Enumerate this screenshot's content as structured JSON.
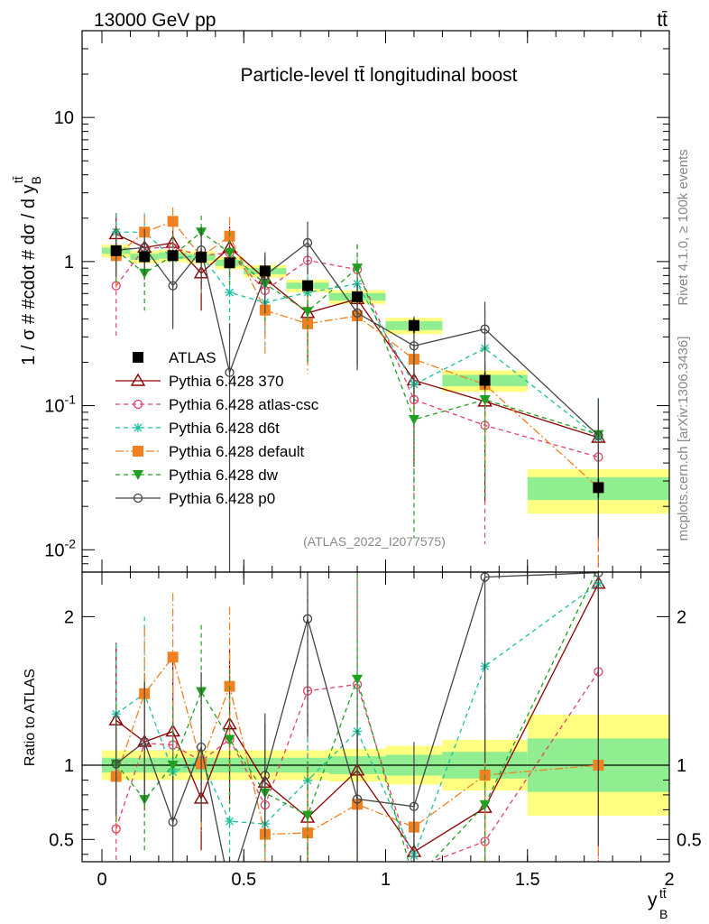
{
  "header": {
    "left": "13000 GeV pp",
    "right": "tt̄"
  },
  "side_labels": {
    "rivet": "Rivet 4.1.0, ≥ 100k events",
    "mcplots": "mcplots.cern.ch [arXiv:1306.3436]"
  },
  "chart_data": {
    "type": "line",
    "title": "Particle-level tt̄ longitudinal boost",
    "watermark": "(ATLAS_2022_I2077575)",
    "xlabel": "y_B^{tt̄}",
    "ylabel": "1 / σ # #cdot # dσ / d y_B^{tt̄}",
    "ratio_ylabel": "Ratio to ATLAS",
    "xlim": [
      -0.07,
      2.0
    ],
    "ylim": [
      0.007,
      40
    ],
    "yscale": "log",
    "ratio_ylim": [
      0.35,
      2.3
    ],
    "x_ticks": [
      "0",
      "0.5",
      "1",
      "1.5",
      "2"
    ],
    "y_ticks": [
      "10^{-2}",
      "10^{-1}",
      "1",
      "10"
    ],
    "ratio_ticks": [
      "0.5",
      "1",
      "2"
    ],
    "bins": [
      [
        0,
        0.1
      ],
      [
        0.1,
        0.2
      ],
      [
        0.2,
        0.3
      ],
      [
        0.3,
        0.4
      ],
      [
        0.4,
        0.5
      ],
      [
        0.5,
        0.65
      ],
      [
        0.65,
        0.8
      ],
      [
        0.8,
        1.0
      ],
      [
        1.0,
        1.2
      ],
      [
        1.2,
        1.5
      ],
      [
        1.5,
        2.0
      ]
    ],
    "x": [
      0.05,
      0.15,
      0.25,
      0.35,
      0.45,
      0.575,
      0.725,
      0.9,
      1.1,
      1.35,
      1.75
    ],
    "data": {
      "name": "ATLAS",
      "values": [
        1.19,
        1.08,
        1.1,
        1.07,
        0.98,
        0.86,
        0.68,
        0.57,
        0.36,
        0.15,
        0.027
      ],
      "errors": [
        0.09,
        0.09,
        0.09,
        0.09,
        0.08,
        0.07,
        0.06,
        0.05,
        0.04,
        0.02,
        0.004
      ],
      "band_inner": [
        0.05,
        0.05,
        0.05,
        0.05,
        0.05,
        0.05,
        0.05,
        0.06,
        0.07,
        0.09,
        0.18
      ],
      "band_outer": [
        0.1,
        0.1,
        0.1,
        0.1,
        0.1,
        0.1,
        0.1,
        0.11,
        0.13,
        0.17,
        0.34
      ]
    },
    "series": [
      {
        "name": "Pythia 6.428 370",
        "color": "#8b0000",
        "marker": "triangle-open",
        "dash": "solid",
        "values": [
          1.55,
          1.25,
          1.35,
          0.83,
          1.25,
          0.76,
          0.44,
          0.55,
          0.15,
          0.107,
          0.06
        ],
        "rel_err": [
          0.4,
          0.4,
          0.4,
          0.45,
          0.4,
          0.45,
          0.55,
          0.65,
          0.75,
          0.8,
          0.8
        ]
      },
      {
        "name": "Pythia 6.428 atlas-csc",
        "color": "#e0406a",
        "marker": "circle-open",
        "dash": "5,4",
        "values": [
          0.68,
          1.24,
          1.25,
          1.1,
          1.15,
          0.63,
          1.02,
          0.88,
          0.11,
          0.073,
          0.044
        ],
        "rel_err": [
          0.55,
          0.4,
          0.4,
          0.45,
          0.4,
          0.5,
          0.45,
          0.5,
          0.8,
          0.85,
          0.9
        ]
      },
      {
        "name": "Pythia 6.428 d6t",
        "color": "#20c0a0",
        "marker": "star",
        "dash": "5,4",
        "values": [
          1.6,
          1.6,
          1.05,
          1.1,
          0.61,
          0.52,
          0.61,
          0.7,
          0.14,
          0.25,
          0.06
        ],
        "rel_err": [
          0.35,
          0.35,
          0.4,
          0.45,
          0.5,
          0.5,
          0.5,
          0.5,
          0.8,
          0.8,
          0.8
        ]
      },
      {
        "name": "Pythia 6.428 default",
        "color": "#f08020",
        "marker": "square",
        "dash": "9,3,2,3",
        "values": [
          1.1,
          1.6,
          1.9,
          1.08,
          1.5,
          0.46,
          0.37,
          0.42,
          0.21,
          0.14,
          0.027
        ],
        "rel_err": [
          0.4,
          0.3,
          0.25,
          0.45,
          0.35,
          0.5,
          0.55,
          0.55,
          0.65,
          0.75,
          0.9
        ]
      },
      {
        "name": "Pythia 6.428 dw",
        "color": "#20a020",
        "marker": "triangle-down",
        "dash": "5,4",
        "values": [
          1.2,
          0.83,
          1.1,
          1.6,
          1.15,
          0.7,
          0.45,
          0.9,
          0.08,
          0.11,
          0.063
        ],
        "rel_err": [
          0.4,
          0.45,
          0.4,
          0.3,
          0.4,
          0.45,
          0.55,
          0.45,
          0.85,
          0.8,
          0.8
        ]
      },
      {
        "name": "Pythia 6.428 p0",
        "color": "#444444",
        "marker": "circle-open",
        "dash": "solid",
        "values": [
          1.2,
          1.25,
          0.68,
          1.2,
          0.17,
          0.8,
          1.35,
          0.44,
          0.26,
          0.34,
          0.062
        ],
        "rel_err": [
          0.35,
          0.35,
          0.5,
          0.45,
          1.2,
          0.45,
          0.4,
          0.6,
          0.6,
          0.55,
          0.8
        ]
      }
    ]
  }
}
